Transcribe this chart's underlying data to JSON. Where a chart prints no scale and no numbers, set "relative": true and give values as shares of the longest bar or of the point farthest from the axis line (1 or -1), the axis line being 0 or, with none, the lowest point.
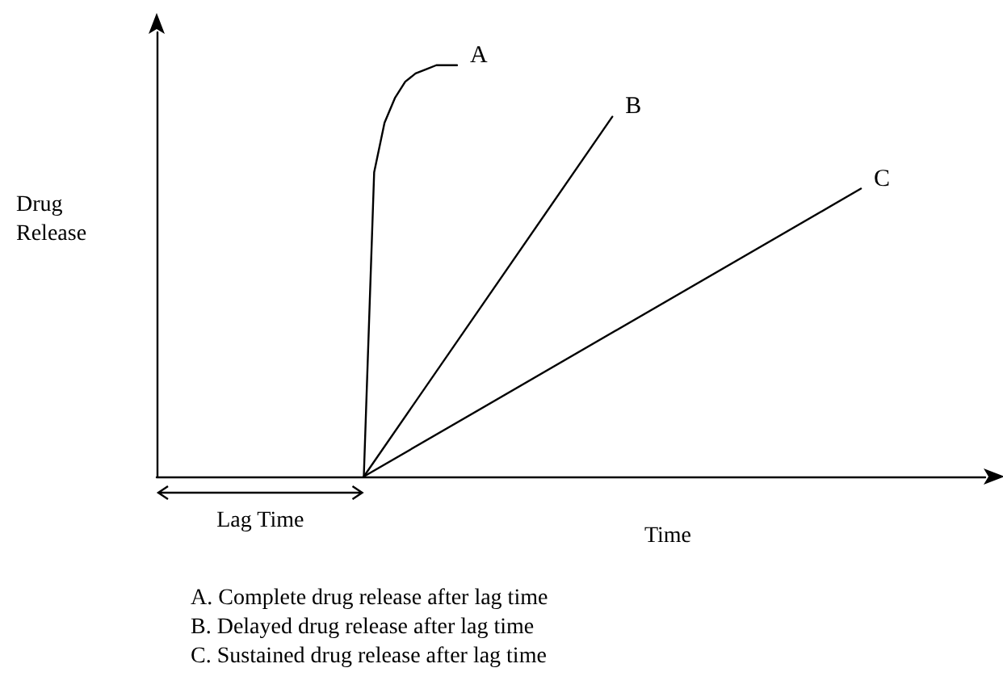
{
  "chart_data": {
    "type": "line",
    "relative": true,
    "xlabel": "Time",
    "ylabel": "Drug Release",
    "grid": false,
    "legend": false,
    "marker": "none",
    "line_style": "solid",
    "categories": [
      null,
      null,
      null,
      null,
      null,
      null,
      null,
      null,
      null,
      null,
      null,
      null,
      null,
      null,
      null,
      null,
      null,
      null,
      null,
      null,
      null,
      null,
      null,
      null,
      null,
      null,
      null,
      null,
      null,
      null,
      null,
      null,
      null,
      null,
      null,
      null,
      null,
      null,
      null,
      null,
      null,
      null,
      null,
      null,
      null,
      null,
      null,
      null,
      null,
      null,
      null,
      null,
      null,
      null,
      null,
      null,
      null,
      null,
      null,
      null,
      null,
      null,
      null,
      null,
      null,
      null,
      null,
      null,
      null,
      null,
      null,
      null,
      null,
      null,
      null,
      null,
      null,
      null,
      null,
      null,
      null
    ],
    "series": [
      {
        "name": "A",
        "color": "#000000",
        "values": [
          null,
          null,
          null,
          null,
          null,
          null,
          null,
          null,
          null,
          null,
          null,
          null,
          null,
          null,
          null,
          null,
          null,
          null,
          null,
          null,
          0,
          0.74,
          0.86,
          0.92,
          0.96,
          0.98,
          0.99,
          1.0,
          1.0,
          1.0,
          null,
          null,
          null,
          null,
          null,
          null,
          null,
          null,
          null,
          null,
          null,
          null,
          null,
          null,
          null,
          null,
          null,
          null,
          null,
          null,
          null,
          null,
          null,
          null,
          null,
          null,
          null,
          null,
          null,
          null,
          null,
          null,
          null,
          null,
          null,
          null,
          null,
          null,
          null,
          null,
          null,
          null,
          null,
          null,
          null,
          null,
          null,
          null,
          null,
          null,
          null
        ]
      },
      {
        "name": "B",
        "color": "#000000",
        "values": [
          null,
          null,
          null,
          null,
          null,
          null,
          null,
          null,
          null,
          null,
          null,
          null,
          null,
          null,
          null,
          null,
          null,
          null,
          null,
          null,
          0,
          null,
          null,
          null,
          null,
          null,
          null,
          null,
          null,
          null,
          null,
          null,
          null,
          null,
          null,
          null,
          null,
          null,
          null,
          null,
          null,
          null,
          null,
          null,
          0.875,
          null,
          null,
          null,
          null,
          null,
          null,
          null,
          null,
          null,
          null,
          null,
          null,
          null,
          null,
          null,
          null,
          null,
          null,
          null,
          null,
          null,
          null,
          null,
          null,
          null,
          null,
          null,
          null,
          null,
          null,
          null,
          null,
          null,
          null,
          null,
          null
        ]
      },
      {
        "name": "C",
        "color": "#000000",
        "values": [
          null,
          null,
          null,
          null,
          null,
          null,
          null,
          null,
          null,
          null,
          null,
          null,
          null,
          null,
          null,
          null,
          null,
          null,
          null,
          null,
          0,
          null,
          null,
          null,
          null,
          null,
          null,
          null,
          null,
          null,
          null,
          null,
          null,
          null,
          null,
          null,
          null,
          null,
          null,
          null,
          null,
          null,
          null,
          null,
          null,
          null,
          null,
          null,
          null,
          null,
          null,
          null,
          null,
          null,
          null,
          null,
          null,
          null,
          null,
          null,
          null,
          null,
          null,
          null,
          null,
          null,
          null,
          null,
          0.7,
          null,
          null,
          null,
          null,
          null,
          null,
          null,
          null,
          null,
          null,
          null,
          null
        ]
      }
    ],
    "annotations": [
      "Lag Time",
      "A. Complete drug release after lag time",
      "B. Delayed drug release after lag time",
      "C. Sustained drug release after lag time"
    ]
  }
}
